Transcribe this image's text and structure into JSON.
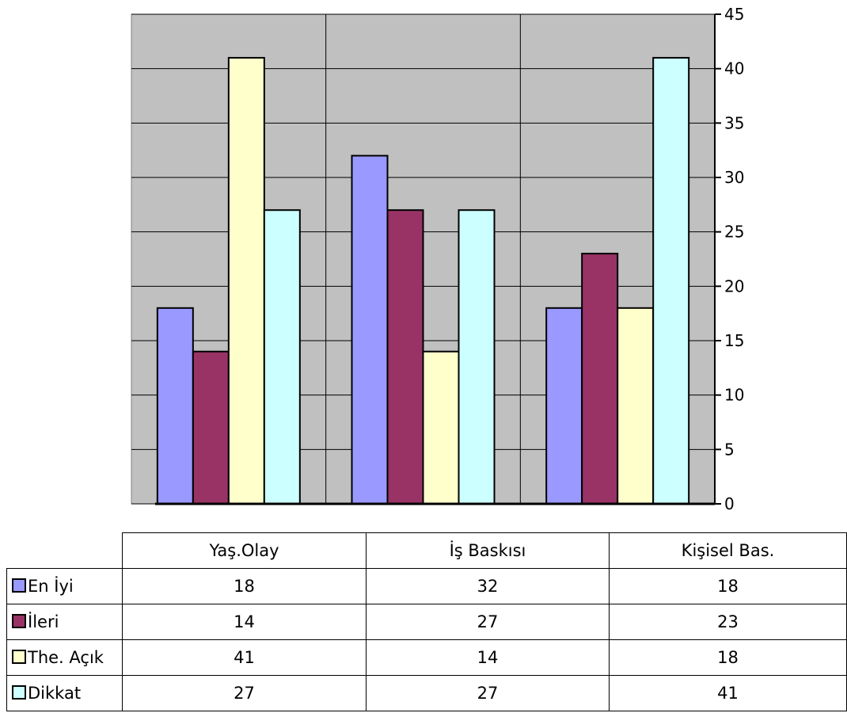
{
  "chart_data": {
    "type": "bar",
    "categories": [
      "Yaş.Olay",
      "İş Baskısı",
      "Kişisel Bas."
    ],
    "series": [
      {
        "name": "En İyi",
        "values": [
          18,
          32,
          18
        ],
        "color": "#9999ff"
      },
      {
        "name": "İleri",
        "values": [
          14,
          27,
          23
        ],
        "color": "#993366"
      },
      {
        "name": "The. Açık",
        "values": [
          41,
          14,
          18
        ],
        "color": "#ffffcc"
      },
      {
        "name": "Dikkat",
        "values": [
          27,
          27,
          41
        ],
        "color": "#ccffff"
      }
    ],
    "ylim": [
      0,
      45
    ],
    "yticks": [
      "0",
      "5",
      "10",
      "15",
      "20",
      "25",
      "30",
      "35",
      "40",
      "45"
    ],
    "y_axis_side": "right",
    "grid": true,
    "plot_background": "#c0c0c0",
    "legend": "data-table"
  }
}
